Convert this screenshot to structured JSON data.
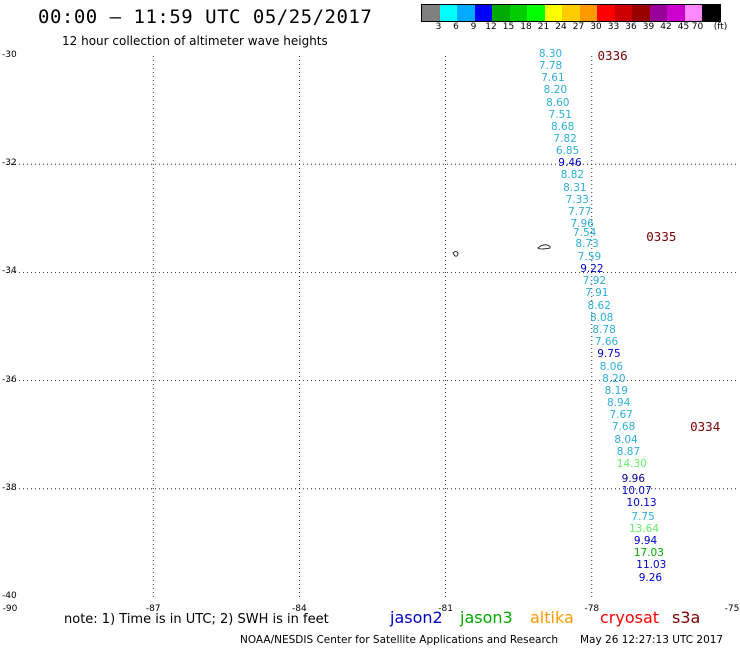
{
  "header": {
    "title": "00:00 – 11:59 UTC 05/25/2017",
    "subtitle": "12 hour collection of altimeter wave heights"
  },
  "legend": {
    "colors": [
      "#808080",
      "#00ffff",
      "#00aaff",
      "#0000ff",
      "#00aa00",
      "#00cc00",
      "#00ff00",
      "#ffff00",
      "#ffcc00",
      "#ff9900",
      "#ff0000",
      "#cc0000",
      "#990000",
      "#990099",
      "#cc00cc",
      "#ff88ff",
      "#000000"
    ],
    "ticks": [
      "3",
      "6",
      "9",
      "12",
      "15",
      "18",
      "21",
      "24",
      "27",
      "30",
      "33",
      "36",
      "39",
      "42",
      "45",
      "70",
      "(ft)"
    ]
  },
  "axes": {
    "lat_labels": [
      "-30",
      "-32",
      "-34",
      "-36",
      "-38",
      "-40"
    ],
    "lon_labels": [
      "-90",
      "-87",
      "-84",
      "-81",
      "-78",
      "-75"
    ]
  },
  "passes": [
    {
      "label": "0336",
      "lon": -77.8,
      "lat": -30.0
    },
    {
      "label": "0335",
      "lon": -76.8,
      "lat": -33.35
    },
    {
      "label": "0334",
      "lon": -75.9,
      "lat": -36.85
    }
  ],
  "observations": [
    {
      "v": "8.30",
      "c": "#2eaed8",
      "lon": -78.8,
      "lat": -30.0
    },
    {
      "v": "7.78",
      "c": "#2eaed8",
      "lon": -78.8,
      "lat": -30.22
    },
    {
      "v": "7.61",
      "c": "#2eaed8",
      "lon": -78.75,
      "lat": -30.45
    },
    {
      "v": "8.20",
      "c": "#2eaed8",
      "lon": -78.7,
      "lat": -30.67
    },
    {
      "v": "8.60",
      "c": "#2eaed8",
      "lon": -78.65,
      "lat": -30.9
    },
    {
      "v": "7.51",
      "c": "#2eaed8",
      "lon": -78.6,
      "lat": -31.12
    },
    {
      "v": "8.68",
      "c": "#2eaed8",
      "lon": -78.55,
      "lat": -31.35
    },
    {
      "v": "7.82",
      "c": "#2eaed8",
      "lon": -78.5,
      "lat": -31.57
    },
    {
      "v": "6.85",
      "c": "#2eaed8",
      "lon": -78.45,
      "lat": -31.8
    },
    {
      "v": "9.46",
      "c": "#0000cc",
      "lon": -78.4,
      "lat": -32.02
    },
    {
      "v": "8.82",
      "c": "#2eaed8",
      "lon": -78.35,
      "lat": -32.24
    },
    {
      "v": "8.31",
      "c": "#2eaed8",
      "lon": -78.3,
      "lat": -32.47
    },
    {
      "v": "7.33",
      "c": "#2eaed8",
      "lon": -78.25,
      "lat": -32.69
    },
    {
      "v": "7.77",
      "c": "#2eaed8",
      "lon": -78.2,
      "lat": -32.92
    },
    {
      "v": "7.96",
      "c": "#2eaed8",
      "lon": -78.15,
      "lat": -33.14
    },
    {
      "v": "7.54",
      "c": "#2eaed8",
      "lon": -78.1,
      "lat": -33.3
    },
    {
      "v": "8.73",
      "c": "#2eaed8",
      "lon": -78.05,
      "lat": -33.52
    },
    {
      "v": "7.59",
      "c": "#2eaed8",
      "lon": -78.0,
      "lat": -33.75
    },
    {
      "v": "9.22",
      "c": "#0000cc",
      "lon": -77.95,
      "lat": -33.97
    },
    {
      "v": "7.92",
      "c": "#2eaed8",
      "lon": -77.9,
      "lat": -34.2
    },
    {
      "v": "7.91",
      "c": "#2eaed8",
      "lon": -77.85,
      "lat": -34.42
    },
    {
      "v": "8.62",
      "c": "#2eaed8",
      "lon": -77.8,
      "lat": -34.65
    },
    {
      "v": "8.08",
      "c": "#2eaed8",
      "lon": -77.75,
      "lat": -34.88
    },
    {
      "v": "8.78",
      "c": "#2eaed8",
      "lon": -77.7,
      "lat": -35.1
    },
    {
      "v": "7.66",
      "c": "#2eaed8",
      "lon": -77.65,
      "lat": -35.33
    },
    {
      "v": "9.75",
      "c": "#0000cc",
      "lon": -77.6,
      "lat": -35.55
    },
    {
      "v": "8.06",
      "c": "#2eaed8",
      "lon": -77.55,
      "lat": -35.78
    },
    {
      "v": "8.20",
      "c": "#2eaed8",
      "lon": -77.5,
      "lat": -36.0
    },
    {
      "v": "8.19",
      "c": "#2eaed8",
      "lon": -77.45,
      "lat": -36.22
    },
    {
      "v": "8.94",
      "c": "#2eaed8",
      "lon": -77.4,
      "lat": -36.45
    },
    {
      "v": "7.67",
      "c": "#2eaed8",
      "lon": -77.35,
      "lat": -36.68
    },
    {
      "v": "7.68",
      "c": "#2eaed8",
      "lon": -77.3,
      "lat": -36.9
    },
    {
      "v": "8.04",
      "c": "#2eaed8",
      "lon": -77.25,
      "lat": -37.13
    },
    {
      "v": "8.87",
      "c": "#2eaed8",
      "lon": -77.2,
      "lat": -37.35
    },
    {
      "v": "14.30",
      "c": "#66ee66",
      "lon": -77.2,
      "lat": -37.58
    },
    {
      "v": "9.96",
      "c": "#000099",
      "lon": -77.1,
      "lat": -37.85
    },
    {
      "v": "10.07",
      "c": "#0000cc",
      "lon": -77.1,
      "lat": -38.08
    },
    {
      "v": "10.13",
      "c": "#0000cc",
      "lon": -77.0,
      "lat": -38.3
    },
    {
      "v": "7.75",
      "c": "#2eaed8",
      "lon": -76.9,
      "lat": -38.55
    },
    {
      "v": "13.64",
      "c": "#66ee66",
      "lon": -76.95,
      "lat": -38.78
    },
    {
      "v": "9.94",
      "c": "#0000cc",
      "lon": -76.85,
      "lat": -39.0
    },
    {
      "v": "17.03",
      "c": "#00aa00",
      "lon": -76.85,
      "lat": -39.23
    },
    {
      "v": "11.03",
      "c": "#0000cc",
      "lon": -76.8,
      "lat": -39.45
    },
    {
      "v": "9.26",
      "c": "#0000cc",
      "lon": -76.75,
      "lat": -39.68
    }
  ],
  "note": "note: 1) Time is in UTC; 2) SWH is in feet",
  "satellites": [
    {
      "name": "jason2",
      "color": "#0000cc"
    },
    {
      "name": "jason3",
      "color": "#00aa00"
    },
    {
      "name": "altika",
      "color": "#ff9900"
    },
    {
      "name": "cryosat",
      "color": "#ff0000"
    },
    {
      "name": "s3a",
      "color": "#7a0000"
    }
  ],
  "footer": "NOAA/NESDIS Center for Satellite Applications and Research",
  "timestamp": "May 26 12:27:13 UTC 2017"
}
